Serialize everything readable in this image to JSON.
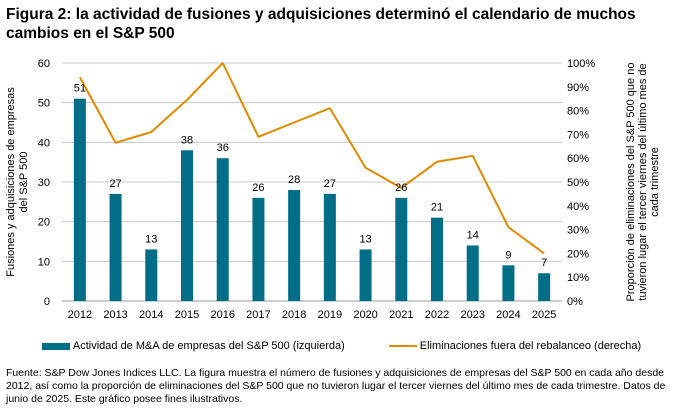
{
  "title": "Figura 2: la actividad de fusiones y adquisiciones determinó el calendario de muchos cambios en el S&P 500",
  "footer": "Fuente: S&P Dow Jones Indices LLC. La figura muestra el número de fusiones y adquisiciones de empresas del S&P 500 en cada año desde 2012, así como la proporción de eliminaciones del S&P 500 que no tuvieron lugar el tercer viernes del último mes de cada trimestre. Datos de junio de 2025. Este gráfico posee fines ilustrativos.",
  "chart_data": {
    "type": "bar+line",
    "categories": [
      "2012",
      "2013",
      "2014",
      "2015",
      "2016",
      "2017",
      "2018",
      "2019",
      "2020",
      "2021",
      "2022",
      "2023",
      "2024",
      "2025"
    ],
    "ylabel_left": "Fusiones y adquisiciones de empresas del S&P 500",
    "ylabel_right": "Proporción de eliminaciones del S&P 500 que no tuvieron lugar el tercer viernes del último mes de cada trimestre",
    "ylim_left": [
      0,
      60
    ],
    "yticks_left": [
      "0",
      "10",
      "20",
      "30",
      "40",
      "50",
      "60"
    ],
    "ylim_right": [
      0,
      100
    ],
    "yticks_right": [
      "0%",
      "10%",
      "20%",
      "30%",
      "40%",
      "50%",
      "60%",
      "70%",
      "80%",
      "90%",
      "100%"
    ],
    "grid": true,
    "legend_position": "bottom",
    "series": [
      {
        "name": "Actividad de M&A de empresas del S&P 500 (izquierda)",
        "type": "bar",
        "axis": "left",
        "color": "#006E87",
        "values": [
          51,
          27,
          13,
          38,
          36,
          26,
          28,
          27,
          13,
          26,
          21,
          14,
          9,
          7
        ]
      },
      {
        "name": "Eliminaciones fuera del rebalanceo (derecha)",
        "type": "line",
        "axis": "right",
        "color": "#E08A00",
        "values": [
          94,
          66.5,
          71,
          84.5,
          100,
          69,
          75,
          81,
          56,
          47.5,
          58.5,
          61,
          31,
          20
        ]
      }
    ]
  }
}
